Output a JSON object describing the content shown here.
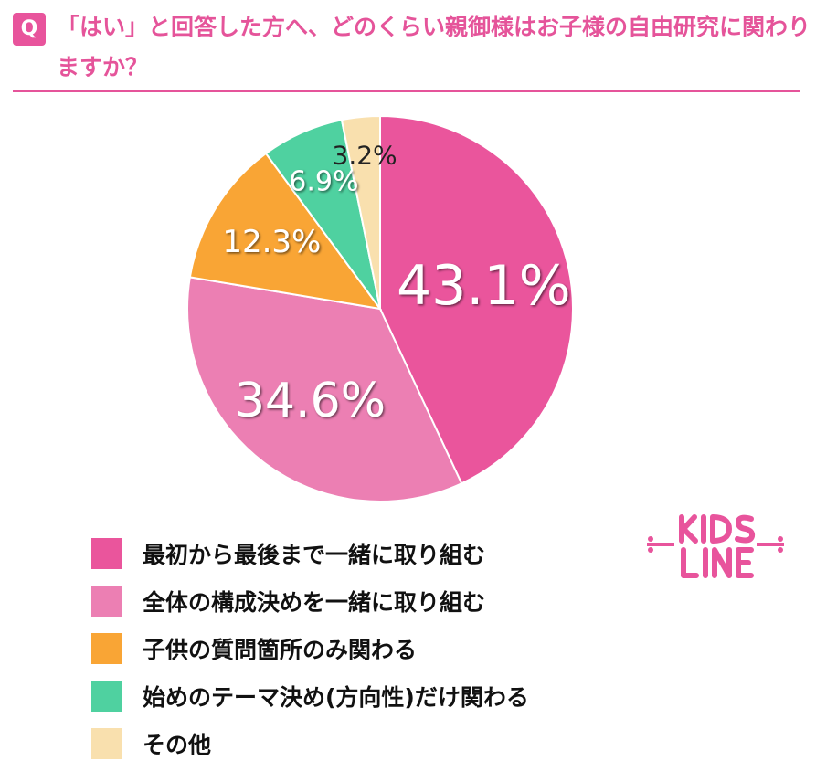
{
  "header": {
    "badge": "Q",
    "question": "「はい」と回答した方へ、どのくらい親御様はお子様の自由研究に関わりますか？"
  },
  "logo": {
    "text": "KIDS LINE"
  },
  "chart_data": {
    "type": "pie",
    "title": "",
    "slices": [
      {
        "label": "最初から最後まで一緒に取り組む",
        "value": 43.1,
        "display": "43.1%",
        "color": "#ea559c"
      },
      {
        "label": "全体の構成決めを一緒に取り組む",
        "value": 34.6,
        "display": "34.6%",
        "color": "#ec7fb3"
      },
      {
        "label": "子供の質問箇所のみ関わる",
        "value": 12.3,
        "display": "12.3%",
        "color": "#f9a535"
      },
      {
        "label": "始めのテーマ決め(方向性)だけ関わる",
        "value": 6.9,
        "display": "6.9%",
        "color": "#4fd1a0"
      },
      {
        "label": "その他",
        "value": 3.2,
        "display": "3.2%",
        "color": "#f9e0ae"
      }
    ],
    "start_angle": "top",
    "direction": "clockwise",
    "legend_position": "bottom-left"
  }
}
